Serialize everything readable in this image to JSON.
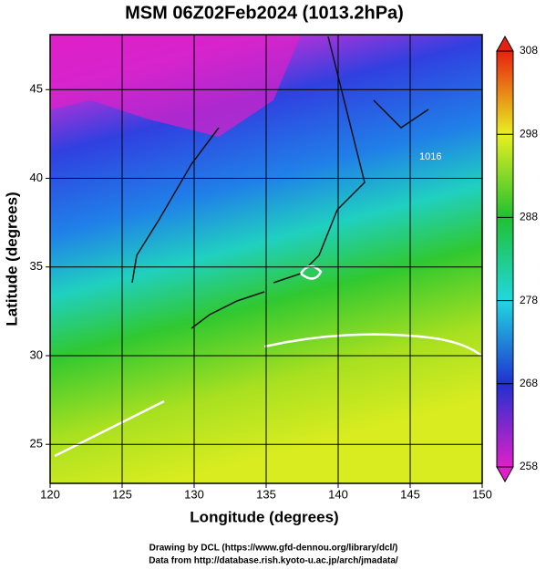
{
  "chart_data": {
    "type": "map",
    "title": "MSM 06Z02Feb2024 (1013.2hPa)",
    "x_label": "Longitude (degrees)",
    "y_label": "Latitude  (degrees)",
    "xlim": [
      120,
      150
    ],
    "xticks": [
      120,
      125,
      130,
      135,
      140,
      145,
      150
    ],
    "ylim": [
      22.8,
      48.1
    ],
    "yticks": [
      25,
      30,
      35,
      40,
      45
    ],
    "grid": true,
    "colorbar": {
      "lim": [
        258,
        308
      ],
      "ticks": [
        258,
        268,
        278,
        288,
        298,
        308
      ],
      "colors": [
        "#e020c8",
        "#2030d0",
        "#20d8e0",
        "#20c030",
        "#e8f020",
        "#e82010"
      ]
    },
    "annotation": "1016",
    "credits": [
      "Drawing by DCL (https://www.gfd-dennou.org/library/dcl/)",
      "Data from http://database.rish.kyoto-u.ac.jp/arch/jmadata/"
    ]
  }
}
